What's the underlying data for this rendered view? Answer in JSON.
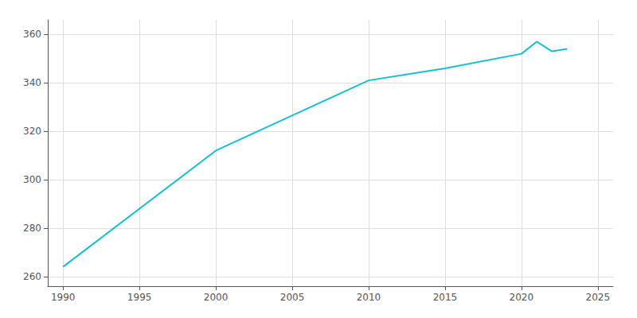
{
  "chart_data": {
    "type": "line",
    "x": [
      1990,
      2000,
      2010,
      2015,
      2020,
      2021,
      2022,
      2023
    ],
    "values": [
      264,
      312,
      341,
      346,
      352,
      357,
      353,
      354
    ],
    "color": "#17BECF",
    "xlim": [
      1989,
      2026
    ],
    "ylim": [
      256,
      366
    ],
    "xticks": [
      1990,
      1995,
      2000,
      2005,
      2010,
      2015,
      2020,
      2025
    ],
    "yticks": [
      260,
      280,
      300,
      320,
      340,
      360
    ],
    "grid": true
  }
}
